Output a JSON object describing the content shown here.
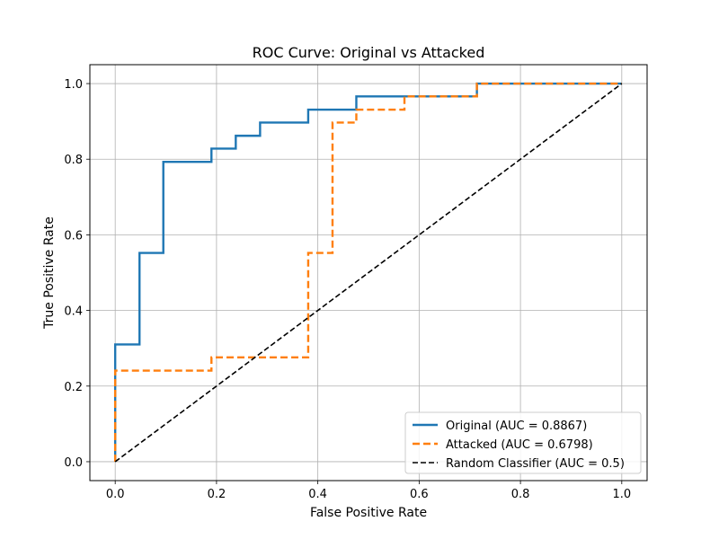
{
  "chart_data": {
    "type": "line",
    "title": "ROC Curve: Original vs Attacked",
    "xlabel": "False Positive Rate",
    "ylabel": "True Positive Rate",
    "xlim": [
      -0.05,
      1.05
    ],
    "ylim": [
      -0.05,
      1.05
    ],
    "xticks": [
      "0.0",
      "0.2",
      "0.4",
      "0.6",
      "0.8",
      "1.0"
    ],
    "yticks": [
      "0.0",
      "0.2",
      "0.4",
      "0.6",
      "0.8",
      "1.0"
    ],
    "grid": true,
    "legend_position": "bottom-right",
    "series": [
      {
        "name": "Original (AUC = 0.8867)",
        "color": "#1f77b4",
        "style": "solid",
        "x": [
          0.0,
          0.0,
          0.048,
          0.048,
          0.095,
          0.095,
          0.19,
          0.19,
          0.238,
          0.238,
          0.286,
          0.286,
          0.381,
          0.381,
          0.476,
          0.476,
          0.714,
          0.714,
          1.0
        ],
        "y": [
          0.0,
          0.31,
          0.31,
          0.552,
          0.552,
          0.793,
          0.793,
          0.828,
          0.828,
          0.862,
          0.862,
          0.897,
          0.897,
          0.931,
          0.931,
          0.966,
          0.966,
          1.0,
          1.0
        ]
      },
      {
        "name": "Attacked (AUC = 0.6798)",
        "color": "#ff7f0e",
        "style": "dashed",
        "x": [
          0.0,
          0.0,
          0.19,
          0.19,
          0.381,
          0.381,
          0.429,
          0.429,
          0.476,
          0.476,
          0.571,
          0.571,
          0.714,
          0.714,
          1.0
        ],
        "y": [
          0.0,
          0.241,
          0.241,
          0.276,
          0.276,
          0.552,
          0.552,
          0.897,
          0.897,
          0.931,
          0.931,
          0.966,
          0.966,
          1.0,
          1.0
        ]
      },
      {
        "name": "Random Classifier (AUC = 0.5)",
        "color": "#000000",
        "style": "dashed",
        "x": [
          0.0,
          1.0
        ],
        "y": [
          0.0,
          1.0
        ]
      }
    ]
  }
}
